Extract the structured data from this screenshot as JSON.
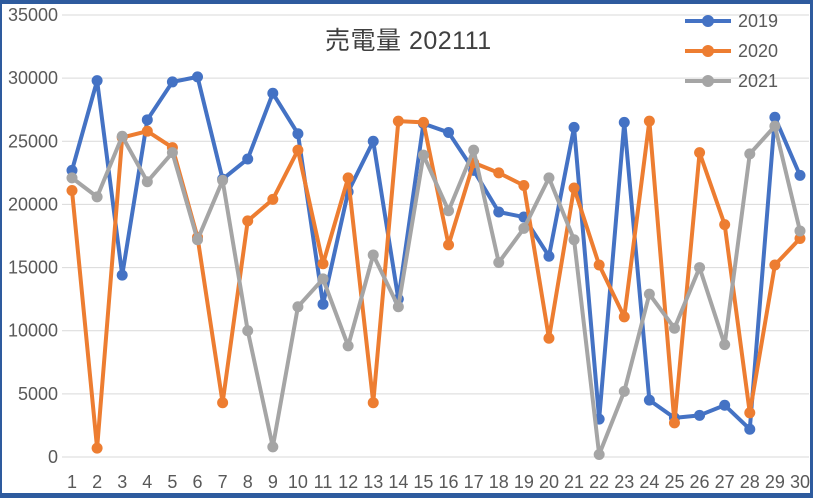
{
  "window": {
    "frame_color": "#2e5b9e"
  },
  "chart_data": {
    "type": "line",
    "title": "売電量 202111",
    "xlabel": "",
    "ylabel": "",
    "x": [
      1,
      2,
      3,
      4,
      5,
      6,
      7,
      8,
      9,
      10,
      11,
      12,
      13,
      14,
      15,
      16,
      17,
      18,
      19,
      20,
      21,
      22,
      23,
      24,
      25,
      26,
      27,
      28,
      29,
      30
    ],
    "series": [
      {
        "name": "2019",
        "color": "#4472C4",
        "values": [
          22700,
          29800,
          14400,
          26700,
          29700,
          30100,
          22000,
          23600,
          28800,
          25600,
          12100,
          21000,
          25000,
          12500,
          26400,
          25700,
          22700,
          19400,
          19000,
          15900,
          26100,
          3000,
          26500,
          4500,
          3100,
          3300,
          4100,
          2200,
          26900,
          22300
        ]
      },
      {
        "name": "2020",
        "color": "#ED7D31",
        "values": [
          21100,
          700,
          25300,
          25800,
          24500,
          17400,
          4300,
          18700,
          20400,
          24300,
          15300,
          22100,
          4300,
          26600,
          26500,
          16800,
          23300,
          22500,
          21500,
          9400,
          21300,
          15200,
          11100,
          26600,
          2700,
          24100,
          18400,
          3500,
          15200,
          17300
        ]
      },
      {
        "name": "2021",
        "color": "#A5A5A5",
        "values": [
          22100,
          20600,
          25400,
          21800,
          24100,
          17200,
          21900,
          10000,
          800,
          11900,
          14100,
          8800,
          16000,
          11900,
          23900,
          19500,
          24300,
          15400,
          18100,
          22100,
          17200,
          200,
          5200,
          12900,
          10200,
          15000,
          8900,
          24000,
          26200,
          17900
        ]
      }
    ],
    "ylim": [
      0,
      35000
    ],
    "yticks": [
      0,
      5000,
      10000,
      15000,
      20000,
      25000,
      30000,
      35000
    ],
    "grid": true,
    "gridline_color": "#d9d9d9",
    "axis_text_color": "#595959",
    "legend_position": "top-right",
    "legend_labels": [
      "2019",
      "2020",
      "2021"
    ]
  }
}
